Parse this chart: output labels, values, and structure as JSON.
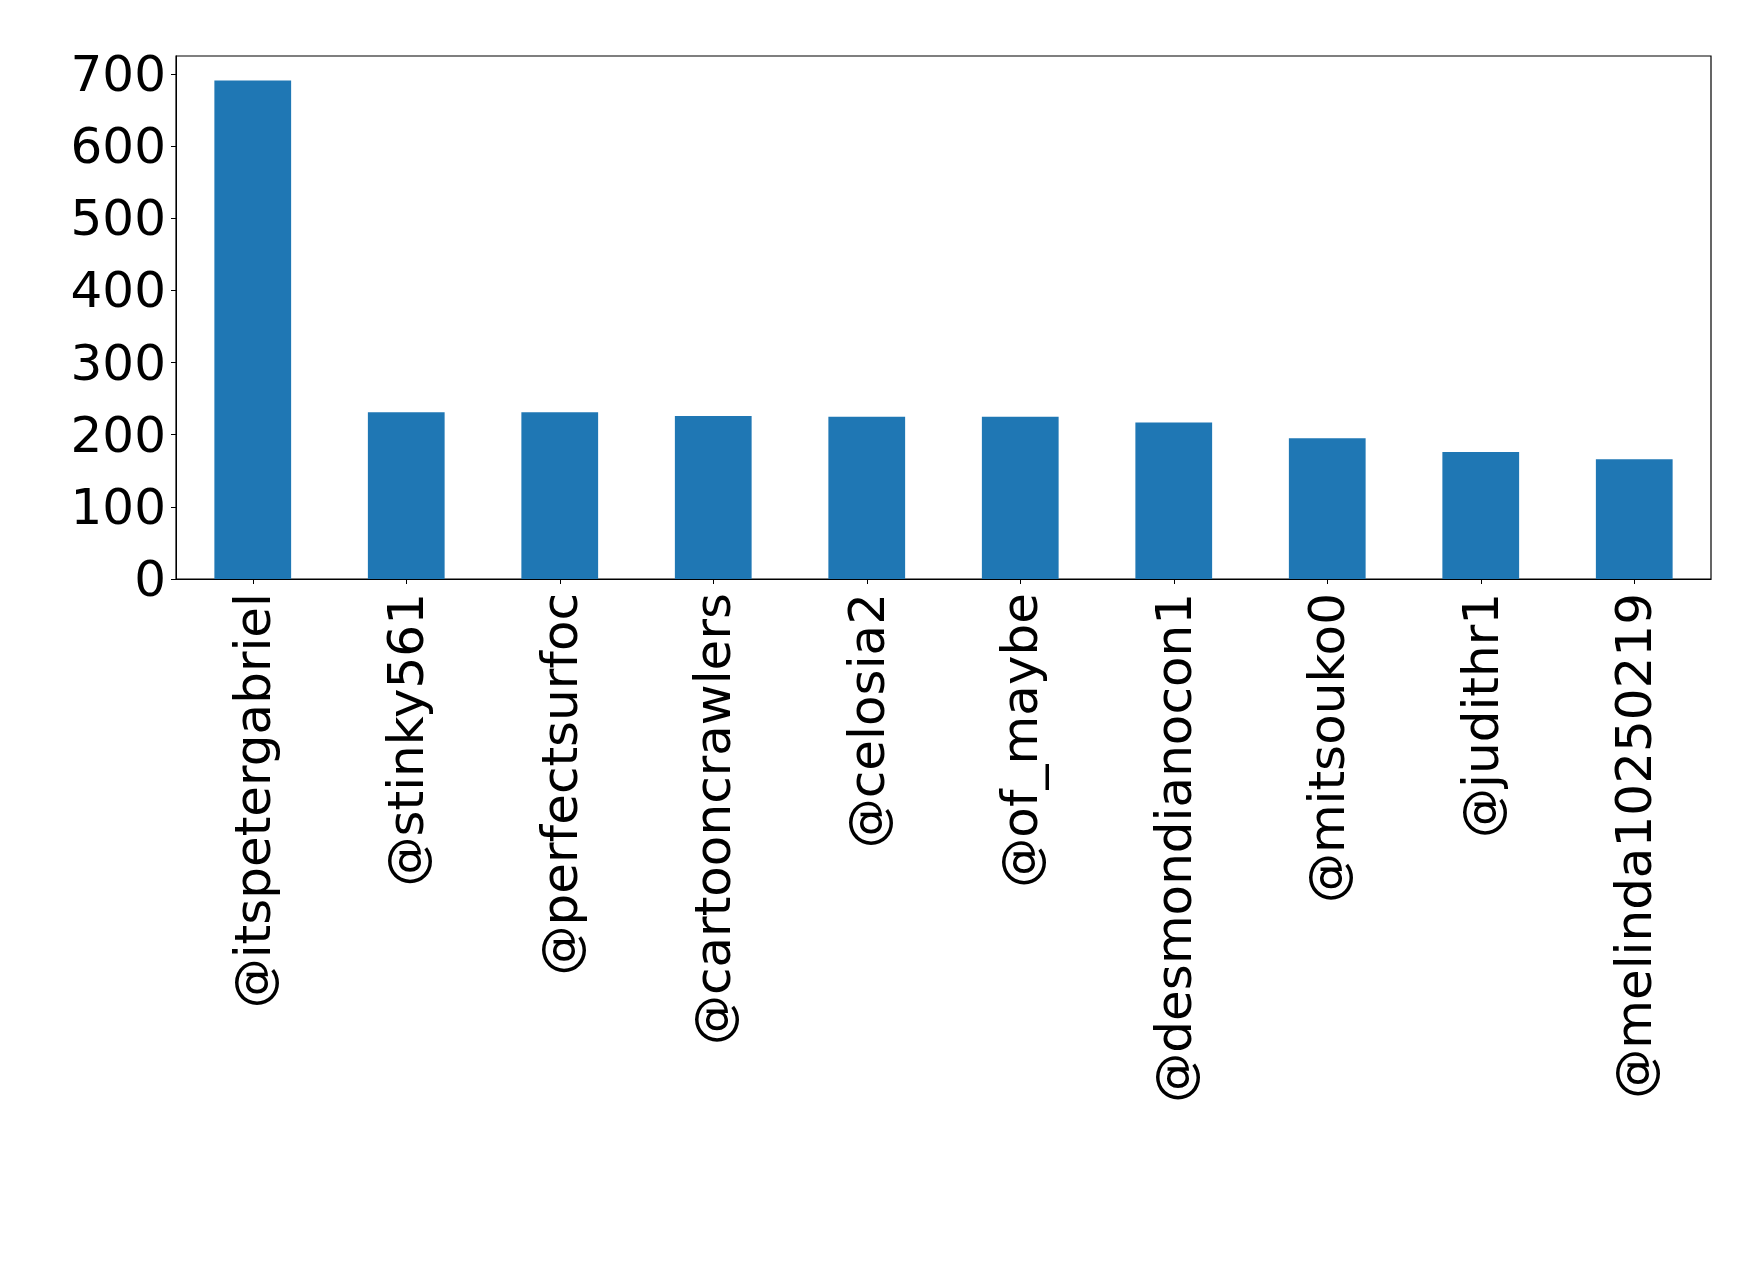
{
  "chart_data": {
    "type": "bar",
    "categories": [
      "@itspetergabriel",
      "@stinky561",
      "@perfectsurfoc",
      "@cartooncrawlers",
      "@celosia2",
      "@of_maybe",
      "@desmondianocon1",
      "@mitsouko0",
      "@judithr1",
      "@melinda10250219"
    ],
    "values": [
      691,
      231,
      231,
      226,
      225,
      225,
      217,
      195,
      176,
      166
    ],
    "color": "#1f77b4",
    "ylim": [
      0,
      725
    ],
    "yticks": [
      0,
      100,
      200,
      300,
      400,
      500,
      600,
      700
    ],
    "grid": false
  }
}
